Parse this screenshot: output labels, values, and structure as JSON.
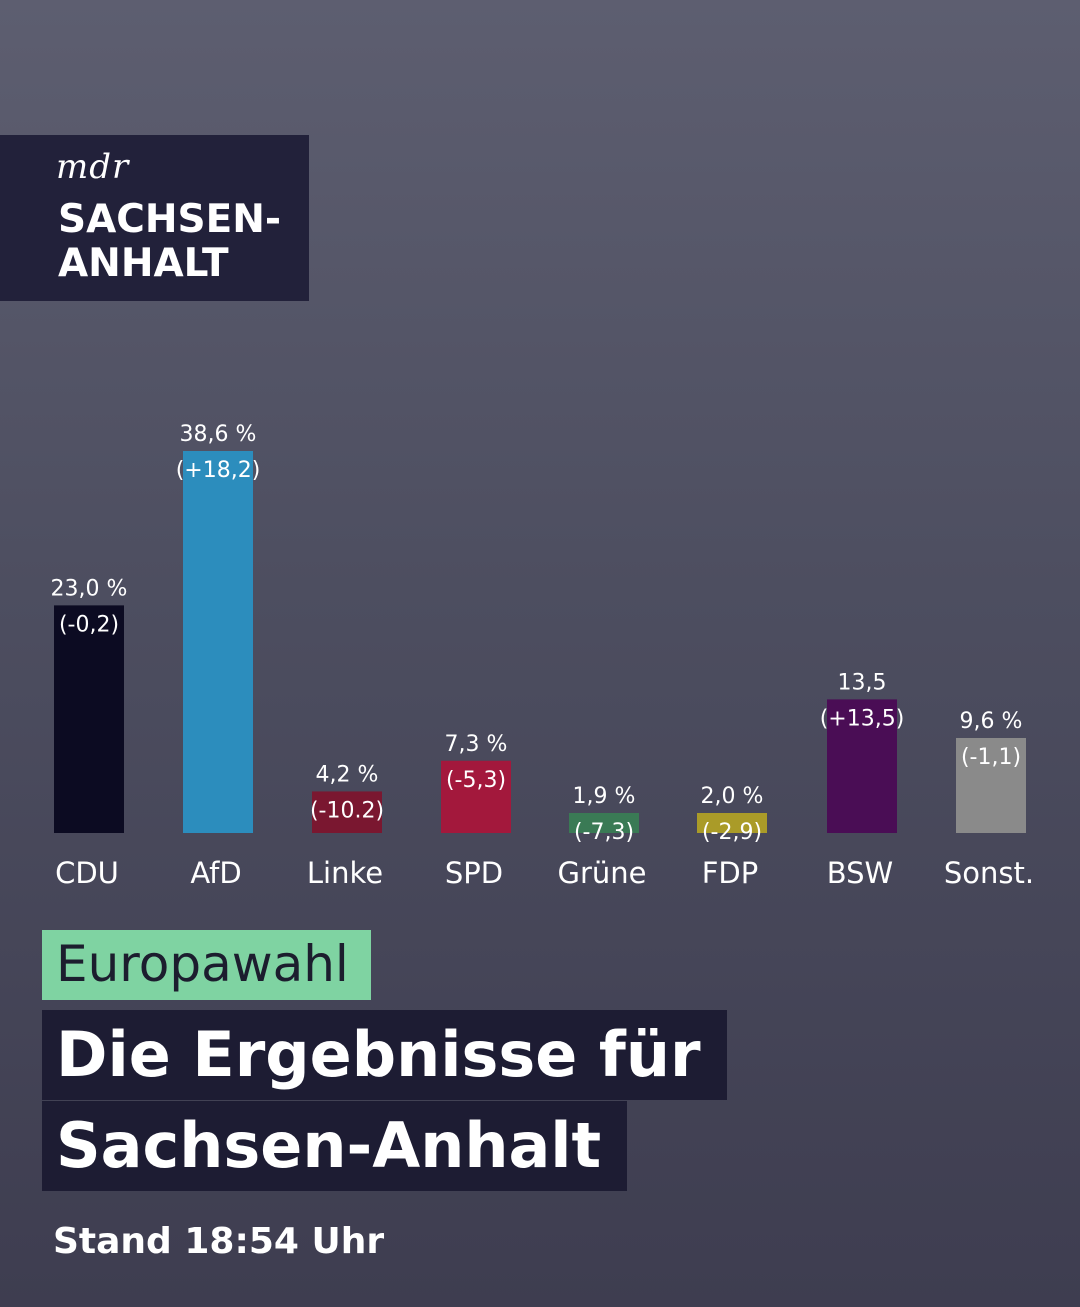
{
  "logo": {
    "line1": "mdr",
    "line2": "SACHSEN-",
    "line3": "ANHALT"
  },
  "chart_data": {
    "type": "bar",
    "categories": [
      "CDU",
      "AfD",
      "Linke",
      "SPD",
      "Grüne",
      "FDP",
      "BSW",
      "Sonst."
    ],
    "values": [
      23.0,
      38.6,
      4.2,
      7.3,
      1.9,
      2.0,
      13.5,
      9.6
    ],
    "value_labels": [
      "23,0 %",
      "38,6 %",
      "4,2 %",
      "7,3 %",
      "1,9 %",
      "2,0 %",
      "13,5",
      "9,6 %"
    ],
    "change_labels": [
      "(-0,2)",
      "(+18,2)",
      "(-10.2)",
      "(-5,3)",
      "(-7,3)",
      "(-2,9)",
      "(+13,5)",
      "(-1,1)"
    ],
    "colors": [
      "#0c0b22",
      "#2c8dbd",
      "#7a1730",
      "#a3183c",
      "#3a7a55",
      "#aa9b28",
      "#4a0d55",
      "#8a8a8a"
    ],
    "ylim": [
      0,
      38.6
    ],
    "title": "",
    "xlabel": "",
    "ylabel": ""
  },
  "tag": "Europawahl",
  "headline": {
    "line1": "Die Ergebnisse für",
    "line2": "Sachsen-Anhalt"
  },
  "stand": "Stand 18:54 Uhr"
}
